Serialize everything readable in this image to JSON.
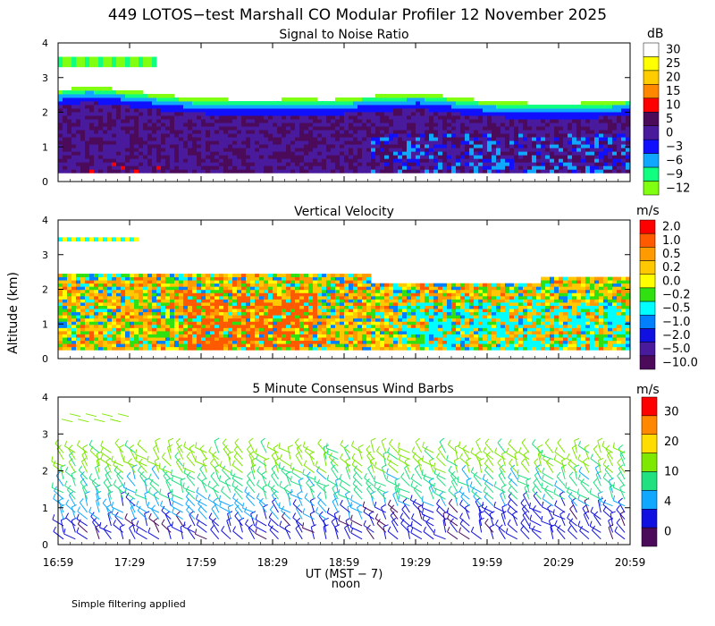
{
  "title": "449 LOTOS−test Marshall CO Modular Profiler 12 November 2025",
  "footnote": "Simple filtering applied",
  "ylabel": "Altitude (km)",
  "xlabel": "UT  (MST − 7)",
  "noon_label": "noon",
  "x_ticks": [
    "16:59",
    "17:29",
    "17:59",
    "18:29",
    "18:59",
    "19:29",
    "19:59",
    "20:29",
    "20:59"
  ],
  "y_ticks": [
    "0",
    "1",
    "2",
    "3",
    "4"
  ],
  "chart_data": [
    {
      "type": "heatmap",
      "title": "Signal to Noise Ratio",
      "unit": "dB",
      "xlim": [
        "16:59",
        "20:59"
      ],
      "ylim": [
        0,
        4
      ],
      "colorbar": {
        "labels": [
          "30",
          "25",
          "20",
          "15",
          "10",
          "5",
          "0",
          "−3",
          "−6",
          "−9",
          "−12"
        ],
        "colors": [
          "#ffffff",
          "#ffff00",
          "#ffcc00",
          "#ff8800",
          "#ff0000",
          "#4b0a5a",
          "#4a1a9c",
          "#1010ff",
          "#10a8ff",
          "#10ff80",
          "#80ff10"
        ]
      },
      "features": {
        "top_of_data_km": [
          2.6,
          2.7,
          2.6,
          2.5,
          2.4,
          2.35,
          2.3,
          2.3,
          2.35,
          2.3,
          2.4,
          2.45,
          2.5,
          2.4,
          2.3,
          2.25,
          2.2,
          2.2,
          2.25,
          2.3
        ],
        "upper_layer_km": [
          3.3,
          3.6
        ]
      }
    },
    {
      "type": "heatmap",
      "title": "Vertical Velocity",
      "unit": "m/s",
      "xlim": [
        "16:59",
        "20:59"
      ],
      "ylim": [
        0,
        4
      ],
      "colorbar": {
        "labels": [
          "2.0",
          "1.0",
          "0.5",
          "0.2",
          "0.0",
          "−0.2",
          "−0.5",
          "−1.0",
          "−2.0",
          "−5.0",
          "−10.0"
        ],
        "colors": [
          "#ff0000",
          "#ff5a00",
          "#ff9a00",
          "#ffc800",
          "#ffff00",
          "#30e010",
          "#00ffff",
          "#0080ff",
          "#1010e0",
          "#4a1a9c",
          "#4b0a5a"
        ]
      }
    },
    {
      "type": "scatter",
      "title": "5 Minute Consensus Wind Barbs",
      "unit": "m/s",
      "xlim": [
        "16:59",
        "20:59"
      ],
      "ylim": [
        0,
        4
      ],
      "colorbar": {
        "labels": [
          "30",
          "20",
          "10",
          "4",
          "0"
        ],
        "colors": [
          "#ff0000",
          "#ff8800",
          "#ffdd00",
          "#7fe800",
          "#20e080",
          "#10a8ff",
          "#1010e0",
          "#4b0a5a"
        ]
      }
    }
  ]
}
